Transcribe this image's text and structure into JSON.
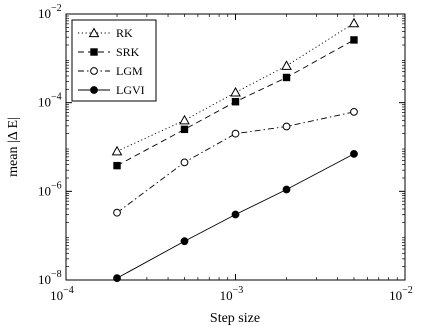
{
  "chart_data": {
    "type": "line",
    "xlabel": "Step size",
    "ylabel": "mean |Δ E|",
    "xscale": "log",
    "yscale": "log",
    "xlim": [
      0.0001,
      0.01
    ],
    "ylim": [
      1e-08,
      0.01
    ],
    "grid": false,
    "legend_position": "top-left",
    "x_ticks": [
      {
        "value": 0.0001,
        "base": "10",
        "exp": "−4"
      },
      {
        "value": 0.001,
        "base": "10",
        "exp": "−3"
      },
      {
        "value": 0.01,
        "base": "10",
        "exp": "−2"
      }
    ],
    "y_ticks": [
      {
        "value": 1e-08,
        "base": "10",
        "exp": "−8"
      },
      {
        "value": 1e-06,
        "base": "10",
        "exp": "−6"
      },
      {
        "value": 0.0001,
        "base": "10",
        "exp": "−4"
      },
      {
        "value": 0.01,
        "base": "10",
        "exp": "−2"
      }
    ],
    "x": [
      0.0002,
      0.0005,
      0.001,
      0.002,
      0.005
    ],
    "series": [
      {
        "name": "RK",
        "values": [
          8e-06,
          4e-05,
          0.00017,
          0.00068,
          0.0062
        ],
        "line_style": "dotted",
        "marker": "triangle-open"
      },
      {
        "name": "SRK",
        "values": [
          3.8e-06,
          2.5e-05,
          0.000105,
          0.00037,
          0.0026
        ],
        "line_style": "dashed",
        "marker": "square-filled"
      },
      {
        "name": "LGM",
        "values": [
          3.3e-07,
          4.5e-06,
          2e-05,
          2.9e-05,
          6.2e-05
        ],
        "line_style": "dashdot",
        "marker": "circle-open"
      },
      {
        "name": "LGVI",
        "values": [
          1.1e-08,
          7.5e-08,
          3e-07,
          1.1e-06,
          7e-06
        ],
        "line_style": "solid",
        "marker": "circle-filled"
      }
    ]
  }
}
